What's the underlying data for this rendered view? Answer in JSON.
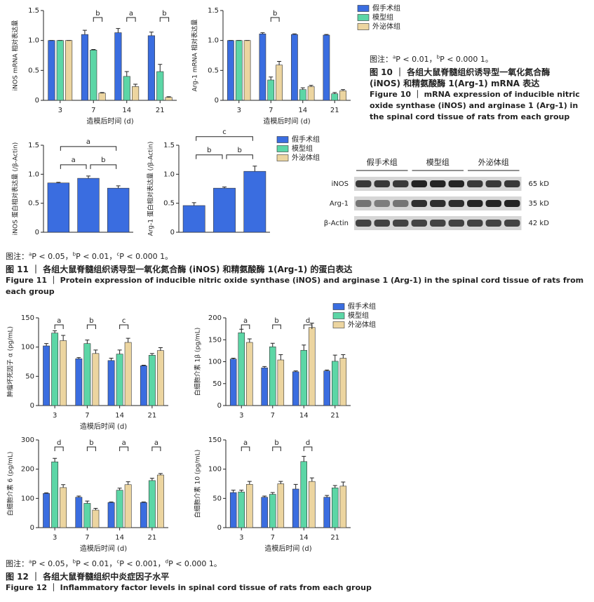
{
  "chart_data": [
    {
      "type": "bar",
      "ylabel": "iNOS mRNA 相对表达量",
      "xlabel": "造模后时间 (d)",
      "categories": [
        "3",
        "7",
        "14",
        "21"
      ],
      "series": [
        {
          "name": "假手术组",
          "color": "#3a6de0",
          "values": [
            1.0,
            1.1,
            1.13,
            1.08
          ],
          "errors": [
            0,
            0.07,
            0.07,
            0.06
          ]
        },
        {
          "name": "模型组",
          "color": "#5cd6a6",
          "values": [
            1.0,
            0.84,
            0.4,
            0.48
          ],
          "errors": [
            0,
            0.01,
            0.08,
            0.12
          ]
        },
        {
          "name": "外泌体组",
          "color": "#ecd5a0",
          "values": [
            1.0,
            0.12,
            0.23,
            0.05
          ],
          "errors": [
            0,
            0.01,
            0.04,
            0.01
          ]
        }
      ],
      "significance": [
        null,
        "b",
        "a",
        "b"
      ],
      "ylim": [
        0,
        1.5
      ],
      "yticks": [
        0,
        0.5,
        {
          "value": 1,
          "label": "1.0"
        },
        1.5
      ],
      "legend": false
    },
    {
      "type": "bar",
      "ylabel": "Arg-1 mRNA 相对表达量",
      "xlabel": "造模后时间 (d)",
      "categories": [
        "3",
        "7",
        "14",
        "21"
      ],
      "series": [
        {
          "name": "假手术组",
          "color": "#3a6de0",
          "values": [
            1.0,
            1.11,
            1.1,
            1.09
          ],
          "errors": [
            0,
            0.02,
            0.01,
            0.01
          ]
        },
        {
          "name": "模型组",
          "color": "#5cd6a6",
          "values": [
            1.0,
            0.34,
            0.18,
            0.11
          ],
          "errors": [
            0,
            0.05,
            0.03,
            0.02
          ]
        },
        {
          "name": "外泌体组",
          "color": "#ecd5a0",
          "values": [
            1.0,
            0.59,
            0.23,
            0.16
          ],
          "errors": [
            0,
            0.06,
            0.02,
            0.02
          ]
        }
      ],
      "significance": [
        null,
        "b",
        null,
        null
      ],
      "ylim": [
        0,
        1.5
      ],
      "yticks": [
        0,
        0.5,
        {
          "value": 1,
          "label": "1.0"
        },
        1.5
      ],
      "legend": true
    },
    {
      "type": "bar",
      "ylabel": "iNOS 蛋白相对表达量 (/β-Actin)",
      "categories": [
        null,
        null,
        null
      ],
      "values": [
        0.85,
        0.93,
        0.76
      ],
      "errors": [
        0.01,
        0.04,
        0.04
      ],
      "color": "#3a6de0",
      "brackets": [
        "a",
        "b",
        "a"
      ],
      "ylim": [
        0,
        1.5
      ],
      "yticks": [
        0,
        0.5,
        {
          "value": 1,
          "label": "1.0"
        },
        1.5
      ]
    },
    {
      "type": "bar",
      "ylabel": "Arg-1 蛋白相对表达量 (/β-Actin)",
      "categories": [
        null,
        null,
        null
      ],
      "values": [
        0.46,
        0.76,
        1.05
      ],
      "errors": [
        0.05,
        0.02,
        0.09
      ],
      "color": "#3a6de0",
      "brackets": [
        "b",
        "b",
        "c"
      ],
      "ylim": [
        0,
        1.5
      ],
      "yticks": [
        0,
        0.5,
        {
          "value": 1,
          "label": "1.0"
        },
        1.5
      ],
      "legend": [
        {
          "name": "假手术组",
          "color": "#3a6de0"
        },
        {
          "name": "模型组",
          "color": "#5cd6a6"
        },
        {
          "name": "外泌体组",
          "color": "#ecd5a0"
        }
      ]
    },
    {
      "type": "bar",
      "ylabel": "肿瘤坏死因子 α (pg/mL)",
      "xlabel": "造模后时间 (d)",
      "categories": [
        "3",
        "7",
        "14",
        "21"
      ],
      "series": [
        {
          "name": "假手术组",
          "color": "#3a6de0",
          "values": [
            102,
            80,
            77,
            68
          ],
          "errors": [
            4,
            2,
            4,
            1
          ]
        },
        {
          "name": "模型组",
          "color": "#5cd6a6",
          "values": [
            124,
            106,
            88,
            86
          ],
          "errors": [
            4,
            6,
            7,
            3
          ]
        },
        {
          "name": "外泌体组",
          "color": "#ecd5a0",
          "values": [
            111,
            89,
            108,
            94
          ],
          "errors": [
            9,
            6,
            7,
            5
          ]
        }
      ],
      "significance": [
        "a",
        "b",
        "c",
        null
      ],
      "ylim": [
        0,
        150
      ],
      "yticks": [
        0,
        50,
        100,
        150
      ],
      "legend": false
    },
    {
      "type": "bar",
      "ylabel": "白细胞介素 1β (pg/mL)",
      "categories": [
        "3",
        "7",
        "14",
        "21"
      ],
      "series": [
        {
          "name": "假手术组",
          "color": "#3a6de0",
          "values": [
            106,
            86,
            77,
            79
          ],
          "errors": [
            2,
            3,
            2,
            2
          ]
        },
        {
          "name": "模型组",
          "color": "#5cd6a6",
          "values": [
            166,
            134,
            126,
            101
          ],
          "errors": [
            8,
            8,
            12,
            14
          ]
        },
        {
          "name": "外泌体组",
          "color": "#ecd5a0",
          "values": [
            144,
            104,
            178,
            108
          ],
          "errors": [
            8,
            12,
            10,
            8
          ]
        }
      ],
      "significance": [
        "a",
        "b",
        "d",
        null
      ],
      "ylim": [
        0,
        200
      ],
      "yticks": [
        0,
        50,
        100,
        150,
        200
      ],
      "legend": true
    },
    {
      "type": "bar",
      "ylabel": "白细胞介素 6 (pg/mL)",
      "xlabel": "造模后时间 (d)",
      "categories": [
        "3",
        "7",
        "14",
        "21"
      ],
      "series": [
        {
          "name": "假手术组",
          "color": "#3a6de0",
          "values": [
            117,
            104,
            86,
            86
          ],
          "errors": [
            2,
            4,
            2,
            2
          ]
        },
        {
          "name": "模型组",
          "color": "#5cd6a6",
          "values": [
            225,
            83,
            128,
            161
          ],
          "errors": [
            12,
            8,
            7,
            8
          ]
        },
        {
          "name": "外泌体组",
          "color": "#ecd5a0",
          "values": [
            137,
            60,
            147,
            180
          ],
          "errors": [
            10,
            6,
            10,
            5
          ]
        }
      ],
      "significance": [
        "d",
        "b",
        "a",
        "a"
      ],
      "ylim": [
        0,
        300
      ],
      "yticks": [
        0,
        100,
        200,
        300
      ],
      "legend": false
    },
    {
      "type": "bar",
      "ylabel": "白细胞介素 10 (pg/mL)",
      "xlabel": "造模后时间 (d)",
      "categories": [
        "3",
        "7",
        "14",
        "21"
      ],
      "series": [
        {
          "name": "假手术组",
          "color": "#3a6de0",
          "values": [
            60,
            52,
            66,
            52
          ],
          "errors": [
            4,
            2,
            8,
            3
          ]
        },
        {
          "name": "模型组",
          "color": "#5cd6a6",
          "values": [
            61,
            57,
            113,
            68
          ],
          "errors": [
            3,
            3,
            9,
            4
          ]
        },
        {
          "name": "外泌体组",
          "color": "#ecd5a0",
          "values": [
            74,
            75,
            79,
            71
          ],
          "errors": [
            5,
            4,
            6,
            7
          ]
        }
      ],
      "significance": [
        "a",
        "b",
        "d",
        null
      ],
      "ylim": [
        0,
        150
      ],
      "yticks": [
        0,
        50,
        100,
        150
      ],
      "legend": false
    }
  ],
  "blot": {
    "groups": [
      "假手术组",
      "模型组",
      "外泌体组"
    ],
    "rows": [
      {
        "label": "iNOS",
        "size": "65 kD"
      },
      {
        "label": "Arg-1",
        "size": "35 kD"
      },
      {
        "label": "β-Actin",
        "size": "42 kD"
      }
    ]
  },
  "captions": [
    {
      "note": {
        "prefix": "图注：",
        "items": [
          {
            "sup": "a",
            "text": "P < 0.01，"
          },
          {
            "sup": "b",
            "text": "P < 0.000 1。"
          }
        ]
      },
      "cn": "图 10 ｜ 各组大鼠脊髓组织诱导型一氧化氮合酶 (iNOS) 和精氨酸酶 1(Arg-1) mRNA 表达",
      "en": "Figure 10 ｜ mRNA expression of inducible nitric oxide synthase (iNOS) and arginase 1 (Arg-1) in the spinal cord tissue of rats from each group"
    },
    {
      "note": {
        "prefix": "图注：",
        "items": [
          {
            "sup": "a",
            "text": "P < 0.05，"
          },
          {
            "sup": "b",
            "text": "P < 0.01，"
          },
          {
            "sup": "c",
            "text": "P < 0.000 1。"
          }
        ]
      },
      "cn": "图 11 ｜ 各组大鼠脊髓组织诱导型一氧化氮合酶 (iNOS) 和精氨酸酶 1(Arg-1) 的蛋白表达",
      "en": "Figure 11 ｜ Protein expression of inducible nitric oxide synthase (iNOS) and arginase 1 (Arg-1) in the spinal cord tissue of rats from each group"
    },
    {
      "note": {
        "prefix": "图注：",
        "items": [
          {
            "sup": "a",
            "text": "P < 0.05，"
          },
          {
            "sup": "b",
            "text": "P < 0.01，"
          },
          {
            "sup": "c",
            "text": "P < 0.001，"
          },
          {
            "sup": "d",
            "text": "P < 0.000 1。"
          }
        ]
      },
      "cn": "图 12 ｜ 各组大鼠脊髓组织中炎症因子水平",
      "en": "Figure 12 ｜ Inflammatory factor levels in spinal cord tissue of rats from each group"
    }
  ]
}
